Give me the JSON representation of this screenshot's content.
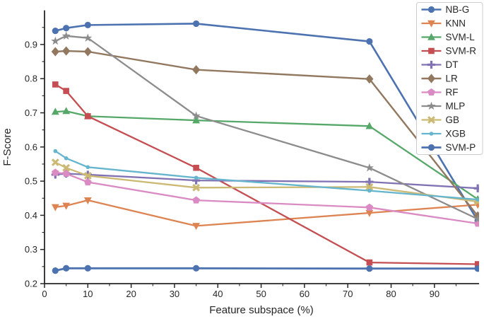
{
  "chart_data": {
    "type": "line",
    "title": "",
    "xlabel": "Feature subspace (%)",
    "ylabel": "F-Score",
    "grid": false,
    "legend_position": "upper right",
    "axis_color": "#262626",
    "x": [
      2.5,
      5,
      10,
      35,
      75,
      100
    ],
    "xlim": [
      0,
      100.3
    ],
    "ylim": [
      0.2,
      1.0
    ],
    "x_ticks": [
      0,
      10,
      20,
      30,
      40,
      50,
      60,
      70,
      80,
      90
    ],
    "y_ticks": [
      0.2,
      0.3,
      0.4,
      0.5,
      0.6,
      0.7,
      0.8,
      0.9
    ],
    "x_minor_ticks": [
      5,
      15,
      25,
      35,
      45,
      55,
      65,
      75,
      85,
      95
    ],
    "y_minor_ticks": [
      0.25,
      0.35,
      0.45,
      0.55,
      0.65,
      0.75,
      0.85,
      0.95
    ],
    "series": [
      {
        "name": "NB-G",
        "color": "#4C72B0",
        "marker": "circle",
        "line_width": 2.6,
        "values": [
          0.94,
          0.948,
          0.957,
          0.961,
          0.909,
          0.384
        ]
      },
      {
        "name": "KNN",
        "color": "#DD8452",
        "marker": "triangle-down",
        "line_width": 2.3,
        "values": [
          0.424,
          0.428,
          0.444,
          0.369,
          0.407,
          0.431
        ]
      },
      {
        "name": "SVM-L",
        "color": "#55A868",
        "marker": "triangle-up",
        "line_width": 2.3,
        "values": [
          0.703,
          0.705,
          0.69,
          0.678,
          0.661,
          0.447
        ]
      },
      {
        "name": "SVM-R",
        "color": "#C44E52",
        "marker": "square",
        "line_width": 2.3,
        "values": [
          0.783,
          0.764,
          0.69,
          0.539,
          0.262,
          0.257
        ]
      },
      {
        "name": "DT",
        "color": "#8172B3",
        "marker": "plus",
        "line_width": 2.3,
        "values": [
          0.519,
          0.522,
          0.519,
          0.502,
          0.498,
          0.479
        ]
      },
      {
        "name": "LR",
        "color": "#937860",
        "marker": "diamond",
        "line_width": 2.4,
        "values": [
          0.879,
          0.881,
          0.879,
          0.826,
          0.799,
          0.398
        ]
      },
      {
        "name": "RF",
        "color": "#DA8BC3",
        "marker": "pentagon",
        "line_width": 2.3,
        "values": [
          0.525,
          0.522,
          0.497,
          0.444,
          0.423,
          0.376
        ]
      },
      {
        "name": "MLP",
        "color": "#8C8C8C",
        "marker": "star",
        "line_width": 2.3,
        "values": [
          0.91,
          0.925,
          0.919,
          0.691,
          0.539,
          0.389
        ]
      },
      {
        "name": "GB",
        "color": "#CCB974",
        "marker": "x",
        "line_width": 2.3,
        "values": [
          0.555,
          0.539,
          0.516,
          0.481,
          0.483,
          0.44
        ]
      },
      {
        "name": "XGB",
        "color": "#64B5CD",
        "marker": "dot",
        "line_width": 2.3,
        "values": [
          0.588,
          0.567,
          0.541,
          0.51,
          0.472,
          0.446
        ]
      },
      {
        "name": "SVM-P",
        "color": "#4C72B0",
        "marker": "circle",
        "line_width": 2.8,
        "values": [
          0.238,
          0.245,
          0.245,
          0.245,
          0.244,
          0.244
        ]
      }
    ]
  }
}
